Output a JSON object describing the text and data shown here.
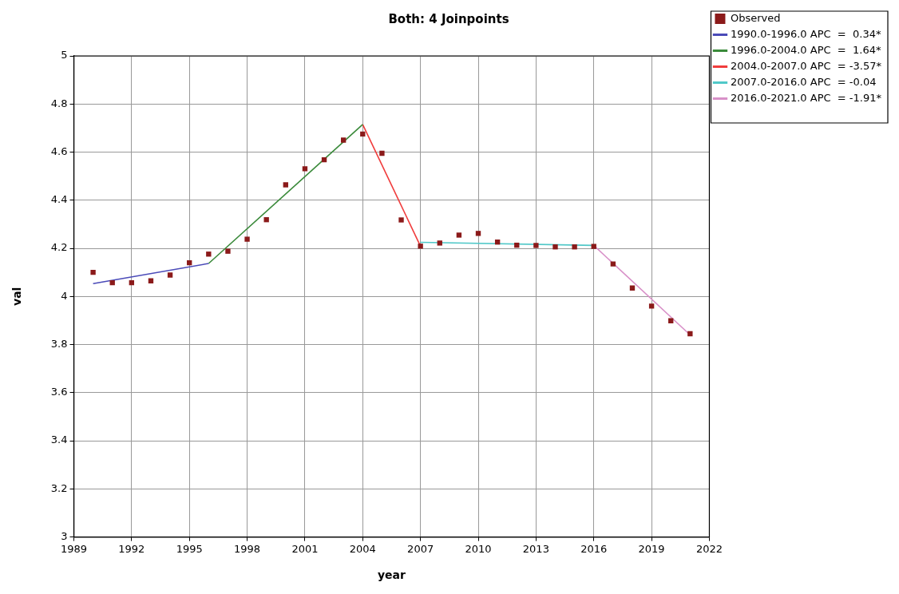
{
  "chart_data": {
    "type": "scatter",
    "title": "Both: 4 Joinpoints",
    "xlabel": "year",
    "ylabel": "val",
    "xlim": [
      1989,
      2022
    ],
    "xticks": [
      1989,
      1992,
      1995,
      1998,
      2001,
      2004,
      2007,
      2010,
      2013,
      2016,
      2019,
      2022
    ],
    "ylim": [
      3,
      5
    ],
    "yticks": [
      3,
      3.2,
      3.4,
      3.6,
      3.8,
      4,
      4.2,
      4.4,
      4.6,
      4.8,
      5
    ],
    "grid": true,
    "legend": "top right",
    "series": [
      {
        "name": "Observed",
        "type": "scatter",
        "marker": "square",
        "color": "#8b1a1a",
        "x": [
          1990,
          1991,
          1992,
          1993,
          1994,
          1995,
          1996,
          1997,
          1998,
          1999,
          2000,
          2001,
          2002,
          2003,
          2004,
          2005,
          2006,
          2007,
          2008,
          2009,
          2010,
          2011,
          2012,
          2013,
          2014,
          2015,
          2016,
          2017,
          2018,
          2019,
          2020,
          2021
        ],
        "values": [
          4.1,
          4.057,
          4.057,
          4.065,
          4.089,
          4.14,
          4.176,
          4.188,
          4.238,
          4.319,
          4.464,
          4.531,
          4.568,
          4.65,
          4.675,
          4.595,
          4.318,
          4.209,
          4.222,
          4.255,
          4.262,
          4.226,
          4.213,
          4.212,
          4.206,
          4.206,
          4.208,
          4.135,
          4.035,
          3.96,
          3.899,
          3.845
        ]
      },
      {
        "name": "1990.0-1996.0 APC  =  0.34*",
        "type": "line",
        "marker": "none",
        "line_style": "solid",
        "color": "#4a4ab8",
        "x": [
          1990,
          1996
        ],
        "values": [
          4.053,
          4.137
        ]
      },
      {
        "name": "1996.0-2004.0 APC  =  1.64*",
        "type": "line",
        "marker": "none",
        "line_style": "solid",
        "color": "#3a8a3a",
        "x": [
          1996,
          2004
        ],
        "values": [
          4.137,
          4.715
        ]
      },
      {
        "name": "2004.0-2007.0 APC  = -3.57*",
        "type": "line",
        "marker": "none",
        "line_style": "solid",
        "color": "#f03c3c",
        "x": [
          2004,
          2007
        ],
        "values": [
          4.715,
          4.209
        ]
      },
      {
        "name": "2007.0-2016.0 APC  = -0.04",
        "type": "line",
        "marker": "none",
        "line_style": "solid",
        "color": "#50c8c8",
        "x": [
          2007,
          2016
        ],
        "values": [
          4.225,
          4.212
        ]
      },
      {
        "name": "2016.0-2021.0 APC  = -1.91*",
        "type": "line",
        "marker": "none",
        "line_style": "solid",
        "color": "#d890c8",
        "x": [
          2016,
          2021
        ],
        "values": [
          4.212,
          3.84
        ]
      }
    ]
  }
}
